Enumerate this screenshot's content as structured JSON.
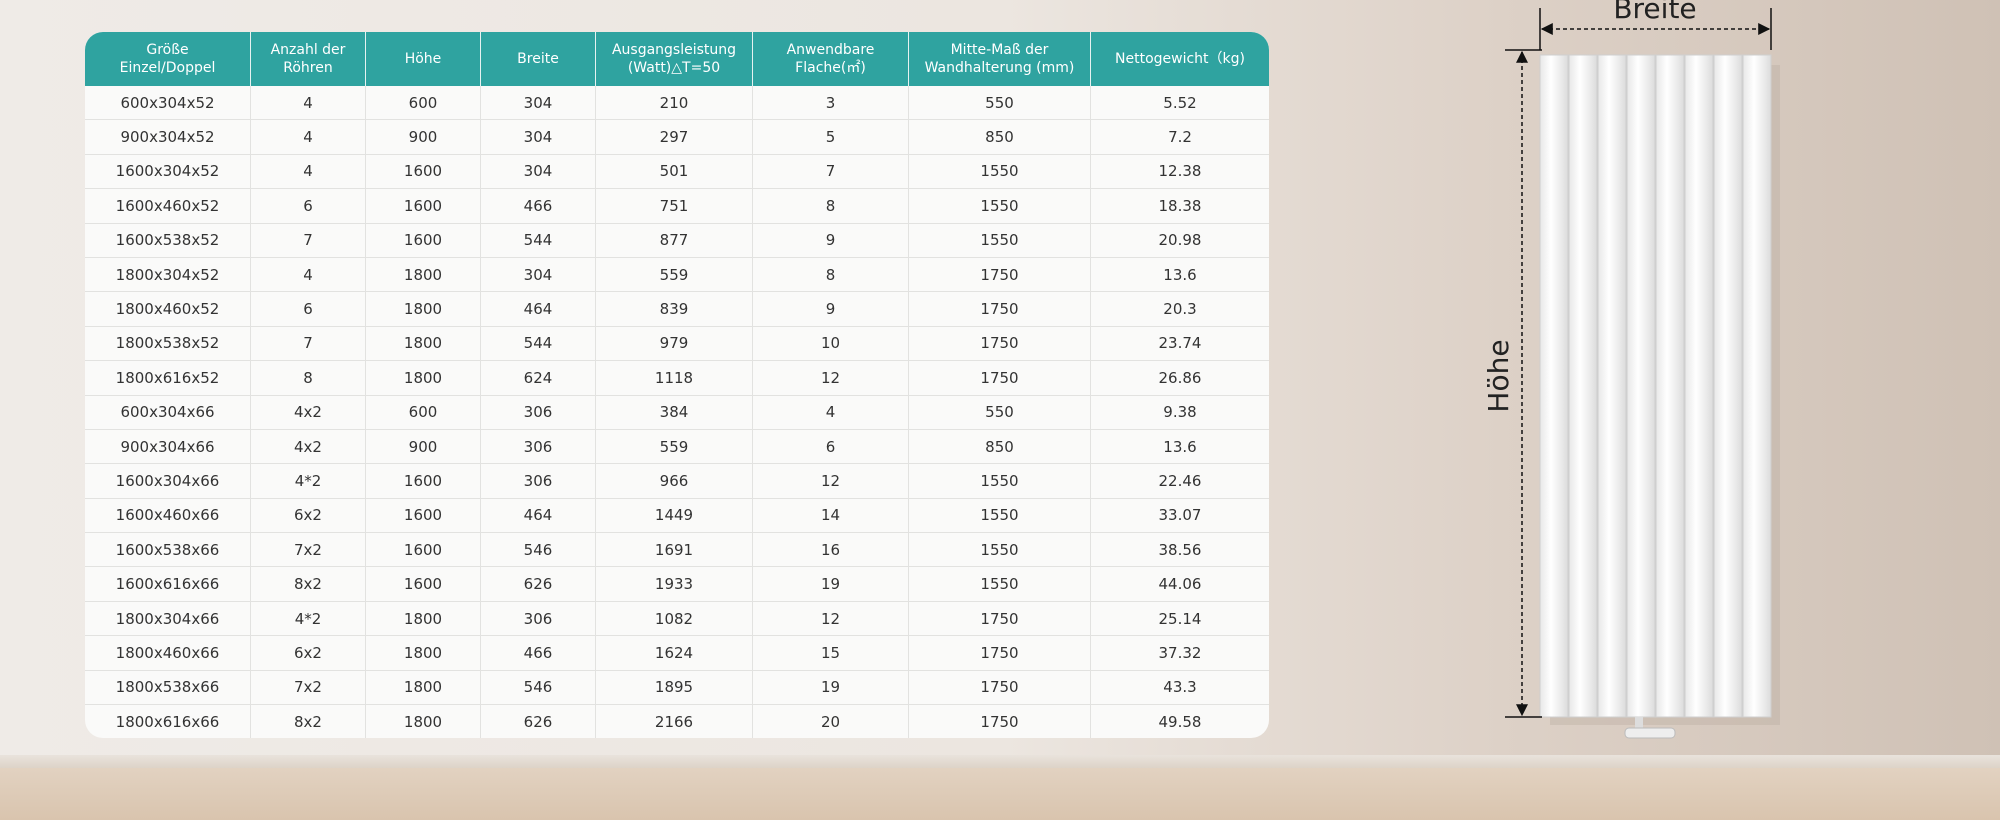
{
  "table": {
    "header": [
      "Größe\nEinzel/Doppel",
      "Anzahl der\nRöhren",
      "Höhe",
      "Breite",
      "Ausgangsleistung\n(Watt)△T=50",
      "Anwendbare\nFlache(㎡)",
      "Mitte-Maß der\nWandhalterung (mm)",
      "Nettogewicht（kg)"
    ],
    "rows": [
      [
        "600x304x52",
        "4",
        "600",
        "304",
        "210",
        "3",
        "550",
        "5.52"
      ],
      [
        "900x304x52",
        "4",
        "900",
        "304",
        "297",
        "5",
        "850",
        "7.2"
      ],
      [
        "1600x304x52",
        "4",
        "1600",
        "304",
        "501",
        "7",
        "1550",
        "12.38"
      ],
      [
        "1600x460x52",
        "6",
        "1600",
        "466",
        "751",
        "8",
        "1550",
        "18.38"
      ],
      [
        "1600x538x52",
        "7",
        "1600",
        "544",
        "877",
        "9",
        "1550",
        "20.98"
      ],
      [
        "1800x304x52",
        "4",
        "1800",
        "304",
        "559",
        "8",
        "1750",
        "13.6"
      ],
      [
        "1800x460x52",
        "6",
        "1800",
        "464",
        "839",
        "9",
        "1750",
        "20.3"
      ],
      [
        "1800x538x52",
        "7",
        "1800",
        "544",
        "979",
        "10",
        "1750",
        "23.74"
      ],
      [
        "1800x616x52",
        "8",
        "1800",
        "624",
        "1118",
        "12",
        "1750",
        "26.86"
      ],
      [
        "600x304x66",
        "4x2",
        "600",
        "306",
        "384",
        "4",
        "550",
        "9.38"
      ],
      [
        "900x304x66",
        "4x2",
        "900",
        "306",
        "559",
        "6",
        "850",
        "13.6"
      ],
      [
        "1600x304x66",
        "4*2",
        "1600",
        "306",
        "966",
        "12",
        "1550",
        "22.46"
      ],
      [
        "1600x460x66",
        "6x2",
        "1600",
        "464",
        "1449",
        "14",
        "1550",
        "33.07"
      ],
      [
        "1600x538x66",
        "7x2",
        "1600",
        "546",
        "1691",
        "16",
        "1550",
        "38.56"
      ],
      [
        "1600x616x66",
        "8x2",
        "1600",
        "626",
        "1933",
        "19",
        "1550",
        "44.06"
      ],
      [
        "1800x304x66",
        "4*2",
        "1800",
        "306",
        "1082",
        "12",
        "1750",
        "25.14"
      ],
      [
        "1800x460x66",
        "6x2",
        "1800",
        "466",
        "1624",
        "15",
        "1750",
        "37.32"
      ],
      [
        "1800x538x66",
        "7x2",
        "1800",
        "546",
        "1895",
        "19",
        "1750",
        "43.3"
      ],
      [
        "1800x616x66",
        "8x2",
        "1800",
        "626",
        "2166",
        "20",
        "1750",
        "49.58"
      ]
    ]
  },
  "figure": {
    "width_label": "Breite",
    "height_label": "Höhe"
  }
}
